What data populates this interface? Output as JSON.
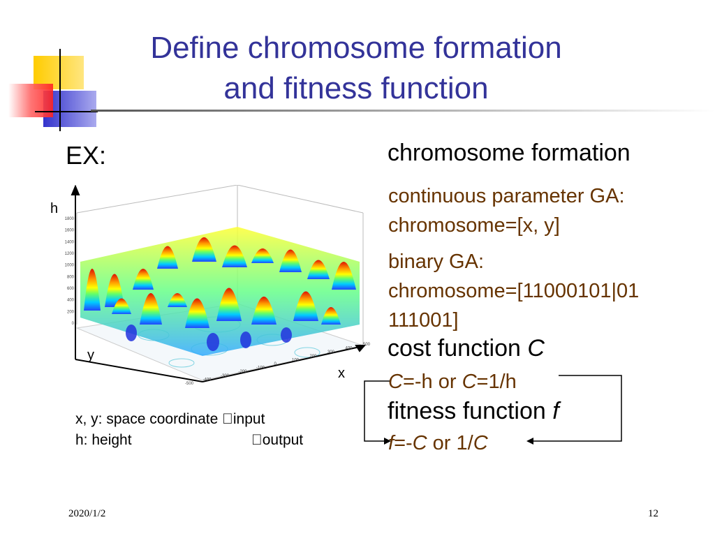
{
  "slide": {
    "title_line1": "Define chromosome formation",
    "title_line2": "and fitness function",
    "ex_label": "EX:",
    "chromosome_heading": "chromosome formation",
    "continuous_line1": "continuous parameter GA:",
    "continuous_line2": "chromosome=[x, y]",
    "binary_line1": "binary GA:",
    "binary_line2": "chromosome=[11000101|01",
    "binary_line3": "111001]",
    "cost_heading": "cost function ",
    "cost_symbol": "C",
    "cost_def_c1": "C",
    "cost_def_mid": "=-h or ",
    "cost_def_c2": "C",
    "cost_def_end": "=1/h",
    "fitness_heading": "fitness function ",
    "fitness_symbol": "f",
    "fitness_def_f": "f",
    "fitness_def_mid": "=-",
    "fitness_def_c1": "C",
    "fitness_def_or": " or 1/",
    "fitness_def_c2": "C",
    "legend_line1": "x, y: space coordinate input",
    "legend_line2_a": "h: height",
    "legend_line2_b": "output",
    "footer_date": "2020/1/2",
    "footer_page": "12"
  },
  "plot": {
    "axis_h": "h",
    "axis_y": "y",
    "axis_x": "x",
    "z_ticks": [
      "1800",
      "1600",
      "1400",
      "1200",
      "1000",
      "800",
      "600",
      "400",
      "200",
      "0"
    ],
    "x_ticks": [
      "-500",
      "-400",
      "-300",
      "-200",
      "-100",
      "0",
      "100",
      "200",
      "300",
      "400",
      "500"
    ],
    "y_ticks": [
      "-500",
      "500"
    ]
  },
  "colors": {
    "title": "#333399",
    "sub_text": "#663300",
    "deco_yellow": "#ffcc00",
    "deco_red": "#ff3333",
    "deco_blue": "#3333cc"
  }
}
